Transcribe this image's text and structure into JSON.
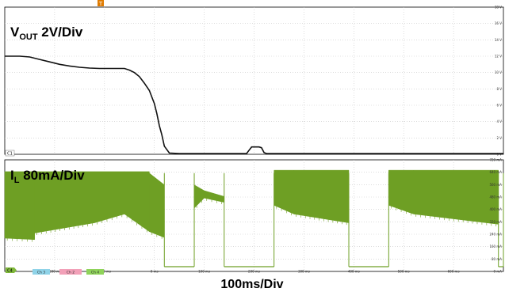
{
  "chart_data": {
    "type": "line",
    "x_units": "ms",
    "x_range": [
      -300,
      700
    ],
    "x_ticks": [
      "-300 ms",
      "-200 ms",
      "-100 ms",
      "0 ms",
      "100 ms",
      "200 ms",
      "300 ms",
      "400 ms",
      "500 ms",
      "600 ms",
      "700 ms"
    ],
    "xlabel": "100ms/Div",
    "trigger_marker": "T",
    "panels": [
      {
        "id": "vout",
        "label_main": "V",
        "label_sub": "OUT",
        "label_rest": " 2V/Div",
        "channel_marker": "C1",
        "color": "#111111",
        "y_range": [
          0,
          18
        ],
        "y_ticks": [
          "18 V",
          "16 V",
          "14 V",
          "12 V",
          "10 V",
          "8 V",
          "6 V",
          "4 V",
          "2 V",
          "0 V"
        ],
        "series": [
          {
            "x": [
              -300,
              -270,
              -250,
              -230,
              -210,
              -190,
              -170,
              -150,
              -130,
              -110,
              -90,
              -60,
              -50,
              -40,
              -30,
              -20,
              -10,
              0,
              5,
              10,
              15,
              20,
              30,
              50,
              100,
              150,
              185,
              190,
              195,
              200,
              205,
              210,
              215,
              220,
              225,
              235,
              250,
              300,
              400,
              500,
              600,
              700
            ],
            "y": [
              12.0,
              12.0,
              11.9,
              11.6,
              11.3,
              11.0,
              10.8,
              10.65,
              10.55,
              10.5,
              10.5,
              10.5,
              10.3,
              10.0,
              9.5,
              8.7,
              7.8,
              6.2,
              5.0,
              3.5,
              2.4,
              1.0,
              0.15,
              0.1,
              0.1,
              0.1,
              0.1,
              0.5,
              0.9,
              0.9,
              0.9,
              0.9,
              0.8,
              0.2,
              0.1,
              0.1,
              0.1,
              0.1,
              0.1,
              0.1,
              0.1,
              0.1
            ]
          }
        ]
      },
      {
        "id": "il",
        "label_main": "I",
        "label_sub": "L",
        "label_rest": " 80mA/Div",
        "channel_marker": "C4",
        "color": "#6e9f24",
        "y_range": [
          0,
          720
        ],
        "y_ticks": [
          "720 mA",
          "640 mA",
          "560 mA",
          "480 mA",
          "400 mA",
          "320 mA",
          "240 mA",
          "160 mA",
          "80 mA",
          "0 mA"
        ],
        "series": [
          {
            "name": "IL ripple envelope",
            "segments": [
              {
                "x": [
                  -300,
                  -240
                ],
                "max": [
                  650,
                  650
                ],
                "min": [
                  195,
                  185
                ]
              },
              {
                "x": [
                  -240,
                  -120
                ],
                "max": [
                  650,
                  650
                ],
                "min": [
                  230,
                  300
                ]
              },
              {
                "x": [
                  -120,
                  -60
                ],
                "max": [
                  650,
                  650
                ],
                "min": [
                  300,
                  360
                ]
              },
              {
                "x": [
                  -60,
                  -10
                ],
                "max": [
                  650,
                  650
                ],
                "min": [
                  360,
                  240
                ]
              },
              {
                "x": [
                  -10,
                  20
                ],
                "max": [
                  640,
                  560
                ],
                "min": [
                  240,
                  200
                ]
              },
              {
                "x": [
                  20,
                  80
                ],
                "max": [
                  0,
                  0
                ],
                "min": [
                  0,
                  0
                ]
              },
              {
                "x": [
                  80,
                  100
                ],
                "max": [
                  560,
                  520
                ],
                "min": [
                  400,
                  470
                ]
              },
              {
                "x": [
                  100,
                  140
                ],
                "max": [
                  520,
                  480
                ],
                "min": [
                  470,
                  440
                ]
              },
              {
                "x": [
                  140,
                  240
                ],
                "max": [
                  0,
                  0
                ],
                "min": [
                  0,
                  0
                ]
              },
              {
                "x": [
                  240,
                  280
                ],
                "max": [
                  660,
                  660
                ],
                "min": [
                  420,
                  360
                ]
              },
              {
                "x": [
                  280,
                  390
                ],
                "max": [
                  660,
                  660
                ],
                "min": [
                  360,
                  300
                ]
              },
              {
                "x": [
                  390,
                  470
                ],
                "max": [
                  0,
                  0
                ],
                "min": [
                  0,
                  0
                ]
              },
              {
                "x": [
                  470,
                  520
                ],
                "max": [
                  660,
                  660
                ],
                "min": [
                  420,
                  360
                ]
              },
              {
                "x": [
                  520,
                  690
                ],
                "max": [
                  660,
                  660
                ],
                "min": [
                  360,
                  290
                ]
              },
              {
                "x": [
                  690,
                  700
                ],
                "max": [
                  0,
                  0
                ],
                "min": [
                  0,
                  0
                ]
              }
            ]
          }
        ]
      }
    ],
    "footer_markers": [
      "Ch 3",
      "Ch 2",
      "Ch 4"
    ]
  }
}
